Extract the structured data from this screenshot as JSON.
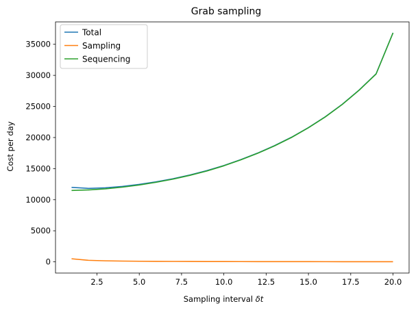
{
  "chart_data": {
    "type": "line",
    "title": "Grab sampling",
    "xlabel_prefix": "Sampling interval ",
    "xlabel_symbol": "δt",
    "ylabel": "Cost per day",
    "xlim": [
      0.05,
      20.95
    ],
    "ylim": [
      -1800,
      38600
    ],
    "xticks": [
      2.5,
      5.0,
      7.5,
      10.0,
      12.5,
      15.0,
      17.5,
      20.0
    ],
    "xtick_labels": [
      "2.5",
      "5.0",
      "7.5",
      "10.0",
      "12.5",
      "15.0",
      "17.5",
      "20.0"
    ],
    "yticks": [
      0,
      5000,
      10000,
      15000,
      20000,
      25000,
      30000,
      35000
    ],
    "ytick_labels": [
      "0",
      "5000",
      "10000",
      "15000",
      "20000",
      "25000",
      "30000",
      "35000"
    ],
    "grid": false,
    "legend": "top-left",
    "x": [
      1,
      2,
      3,
      4,
      5,
      6,
      7,
      8,
      9,
      10,
      11,
      12,
      13,
      14,
      15,
      16,
      17,
      18,
      19,
      20
    ],
    "series": [
      {
        "name": "Total",
        "color": "#1f77b4",
        "values": [
          11980,
          11820,
          11920,
          12140,
          12460,
          12880,
          13380,
          13980,
          14680,
          15500,
          16450,
          17500,
          18700,
          20050,
          21600,
          23350,
          25350,
          27650,
          30250,
          36850
        ]
      },
      {
        "name": "Sampling",
        "color": "#ff7f0e",
        "values": [
          500,
          250,
          167,
          125,
          100,
          83,
          71,
          62,
          56,
          50,
          45,
          42,
          38,
          36,
          33,
          31,
          29,
          28,
          26,
          25
        ]
      },
      {
        "name": "Sequencing",
        "color": "#2ca02c",
        "values": [
          11480,
          11570,
          11750,
          12015,
          12360,
          12800,
          13310,
          13920,
          14620,
          15450,
          16400,
          17460,
          18660,
          20010,
          21570,
          23320,
          25320,
          27620,
          30220,
          36830
        ]
      }
    ]
  }
}
